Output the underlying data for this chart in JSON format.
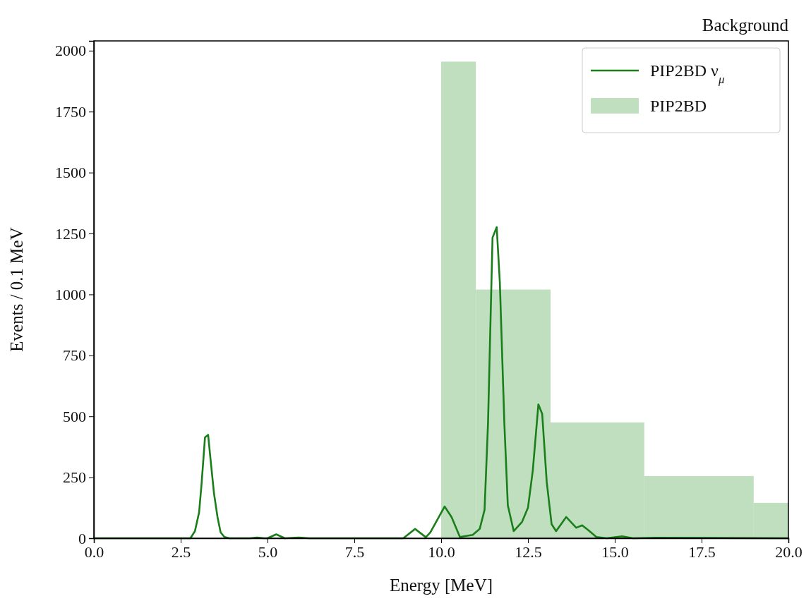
{
  "chart_data": {
    "type": "histogram",
    "title": "Background",
    "xlabel": "Energy [MeV]",
    "ylabel": "Events / 0.1 MeV",
    "xlim": [
      0,
      20
    ],
    "xticks": [
      {
        "value": 0,
        "label": "0.0"
      },
      {
        "value": 2.5,
        "label": "2.5"
      },
      {
        "value": 5,
        "label": "5.0"
      },
      {
        "value": 7.5,
        "label": "7.5"
      },
      {
        "value": 10,
        "label": "10.0"
      },
      {
        "value": 12.5,
        "label": "12.5"
      },
      {
        "value": 15,
        "label": "15.0"
      },
      {
        "value": 17.5,
        "label": "17.5"
      },
      {
        "value": 20,
        "label": "20.0"
      }
    ],
    "ylim": [
      0,
      2040
    ],
    "yticks": [
      0,
      250,
      500,
      750,
      1000,
      1250,
      1500,
      1750,
      2000
    ],
    "legend": "top right",
    "series": [
      {
        "type": "line",
        "name": "PIP2BD ν$_{μ}$",
        "color": "#1a7f1a",
        "x": [
          0,
          2.78,
          2.91,
          3.03,
          3.1,
          3.2,
          3.29,
          3.35,
          3.46,
          3.56,
          3.65,
          3.76,
          3.9,
          4.5,
          4.7,
          4.9,
          5.0,
          5.25,
          5.5,
          5.9,
          6.2,
          8.91,
          9.25,
          9.56,
          9.69,
          10.1,
          10.3,
          10.54,
          10.91,
          11.11,
          11.25,
          11.35,
          11.48,
          11.6,
          11.69,
          11.82,
          11.92,
          12.09,
          12.33,
          12.5,
          12.64,
          12.8,
          12.91,
          13.04,
          13.18,
          13.31,
          13.6,
          13.89,
          14.06,
          14.23,
          14.47,
          14.77,
          15.21,
          15.52,
          16.2,
          20
        ],
        "values": [
          0,
          0,
          29,
          106,
          221,
          414,
          424,
          337,
          183,
          87,
          24,
          5,
          0,
          0,
          3,
          0,
          0,
          16,
          0,
          3,
          0,
          0,
          38,
          4,
          24,
          130,
          87,
          5,
          14,
          38,
          116,
          472,
          1233,
          1276,
          1050,
          472,
          135,
          29,
          67,
          125,
          279,
          549,
          510,
          231,
          58,
          29,
          87,
          43,
          53,
          34,
          5,
          0,
          8,
          0,
          2,
          0
        ]
      },
      {
        "name": "PIP2BD",
        "color": "#bfdfbf",
        "bins": [
          10,
          11,
          13.15,
          15.85,
          19,
          20
        ],
        "values": [
          1955,
          1020,
          475,
          255,
          145
        ]
      }
    ]
  }
}
